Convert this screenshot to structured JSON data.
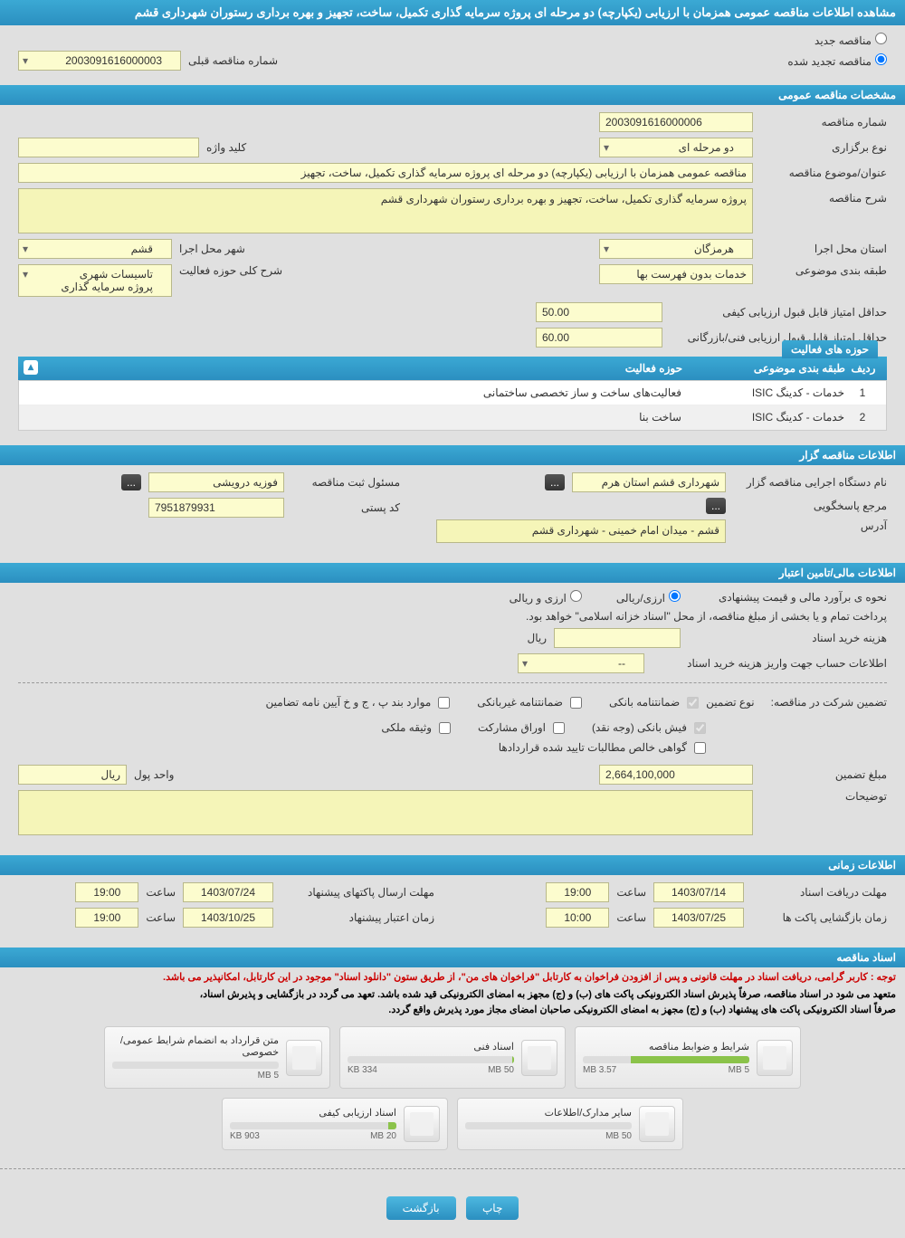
{
  "page_title": "مشاهده اطلاعات مناقصه عمومی همزمان با ارزیابی (یکپارچه) دو مرحله ای پروژه سرمایه گذاری تکمیل، ساخت، تجهیز و بهره برداری رستوران شهرداری قشم",
  "status": {
    "new_tender": "مناقصه جدید",
    "renewed_tender": "مناقصه تجدید شده",
    "prev_number_label": "شماره مناقصه قبلی",
    "prev_number": "2003091616000003"
  },
  "sections": {
    "general": "مشخصات مناقصه عمومی",
    "holder": "اطلاعات مناقصه گزار",
    "financial": "اطلاعات مالی/تامین اعتبار",
    "timing": "اطلاعات زمانی",
    "docs": "اسناد مناقصه"
  },
  "general": {
    "number_label": "شماره مناقصه",
    "number": "2003091616000006",
    "type_label": "نوع برگزاری",
    "type": "دو مرحله ای",
    "keyword_label": "کلید واژه",
    "keyword": "",
    "subject_label": "عنوان/موضوع مناقصه",
    "subject": "مناقصه عمومی همزمان با ارزیابی (یکپارچه) دو مرحله ای پروژه سرمایه گذاری تکمیل، ساخت، تجهیز",
    "desc_label": "شرح مناقصه",
    "desc": "پروژه سرمایه گذاری تکمیل، ساخت، تجهیز و بهره برداری رستوران شهرداری قشم",
    "province_label": "استان محل اجرا",
    "province": "هرمزگان",
    "city_label": "شهر محل اجرا",
    "city": "قشم",
    "class_label": "طبقه بندی موضوعی",
    "class": "خدمات بدون فهرست بها",
    "activity_desc_label": "شرح کلی حوزه فعالیت",
    "activity_desc": "تاسیسات شهری\nپروژه سرمایه گذاری",
    "min_quality_label": "حداقل امتیاز قابل قبول ارزیابی کیفی",
    "min_quality": "50.00",
    "min_tech_label": "حداقل امتیاز قابل قبول ارزیابی فنی/بازرگانی",
    "min_tech": "60.00",
    "activities_header": "حوزه های فعالیت",
    "col_idx": "ردیف",
    "col_cat": "طبقه بندی موضوعی",
    "col_act": "حوزه فعالیت",
    "rows": [
      {
        "idx": "1",
        "cat": "خدمات - کدینگ ISIC",
        "act": "فعالیت‌های ساخت و ساز تخصصی ساختمانی"
      },
      {
        "idx": "2",
        "cat": "خدمات - کدینگ ISIC",
        "act": "ساخت بنا"
      }
    ]
  },
  "holder": {
    "org_label": "نام دستگاه اجرایی مناقصه گزار",
    "org": "شهرداری قشم استان هرم",
    "reg_label": "مسئول ثبت مناقصه",
    "reg": "فوزیه درویشی",
    "contact_label": "مرجع پاسخگویی",
    "contact_btn": "...",
    "post_label": "کد پستی",
    "post": "7951879931",
    "addr_label": "آدرس",
    "addr": "قشم - میدان امام خمینی - شهرداری قشم"
  },
  "financial": {
    "est_label": "نحوه ی برآورد مالی و قیمت پیشنهادی",
    "opt_rial": "ارزی/ریالی",
    "opt_both": "ارزی و ریالی",
    "note": "پرداخت تمام و یا بخشی از مبلغ مناقصه، از محل \"اسناد خزانه اسلامی\" خواهد بود.",
    "cost_label": "هزینه خرید اسناد",
    "cost": "",
    "cost_unit": "ریال",
    "account_label": "اطلاعات حساب جهت واریز هزینه خرید اسناد",
    "account": "--",
    "guarantee_label": "تضمین شرکت در مناقصه:",
    "guarantee_type_label": "نوع تضمین",
    "chk_bank": "ضمانتنامه بانکی",
    "chk_nonbank": "ضمانتنامه غیربانکی",
    "chk_bond": "موارد بند پ ، ج و خ آیین نامه تضامین",
    "chk_cash": "فیش بانکی (وجه نقد)",
    "chk_share": "اوراق مشارکت",
    "chk_deed": "وثیقه ملکی",
    "chk_cert": "گواهی خالص مطالبات تایید شده قراردادها",
    "amount_label": "مبلغ تضمین",
    "amount": "2,664,100,000",
    "unit_label": "واحد پول",
    "unit": "ریال",
    "notes_label": "توضیحات",
    "notes": ""
  },
  "timing": {
    "receive_label": "مهلت دریافت اسناد",
    "receive_date": "1403/07/14",
    "receive_hour_label": "ساعت",
    "receive_hour": "19:00",
    "send_label": "مهلت ارسال پاکتهای پیشنهاد",
    "send_date": "1403/07/24",
    "send_hour": "19:00",
    "open_label": "زمان بازگشایی پاکت ها",
    "open_date": "1403/07/25",
    "open_hour": "10:00",
    "valid_label": "زمان اعتبار پیشنهاد",
    "valid_date": "1403/10/25",
    "valid_hour": "19:00"
  },
  "docs_notes": {
    "red": "توجه : کاربر گرامی، دریافت اسناد در مهلت قانونی و پس از افزودن فراخوان به کارتابل \"فراخوان های من\"، از طریق ستون \"دانلود اسناد\" موجود در این کارتابل، امکانپذیر می باشد.",
    "black1": "متعهد می شود در اسناد مناقصه، صرفاً پذیرش اسناد الکترونیکی پاکت های (ب) و (ج) مجهز به امضای الکترونیکی قید شده باشد. تعهد می گردد در بازگشایی و پذیرش اسناد،",
    "black2": "صرفاً اسناد الکترونیکی پاکت های پیشنهاد (ب) و (ج) مجهز به امضای الکترونیکی صاحبان امضای مجاز مورد پذیرش واقع گردد."
  },
  "documents": [
    {
      "title": "شرایط و ضوابط مناقصه",
      "used": "3.57 MB",
      "total": "5 MB",
      "pct": 71
    },
    {
      "title": "اسناد فنی",
      "used": "334 KB",
      "total": "50 MB",
      "pct": 1
    },
    {
      "title": "متن قرارداد به انضمام شرایط عمومی/خصوصی",
      "used": "",
      "total": "5 MB",
      "pct": 0
    },
    {
      "title": "سایر مدارک/اطلاعات",
      "used": "",
      "total": "50 MB",
      "pct": 0
    },
    {
      "title": "اسناد ارزیابی کیفی",
      "used": "903 KB",
      "total": "20 MB",
      "pct": 5
    }
  ],
  "buttons": {
    "print": "چاپ",
    "back": "بازگشت"
  }
}
